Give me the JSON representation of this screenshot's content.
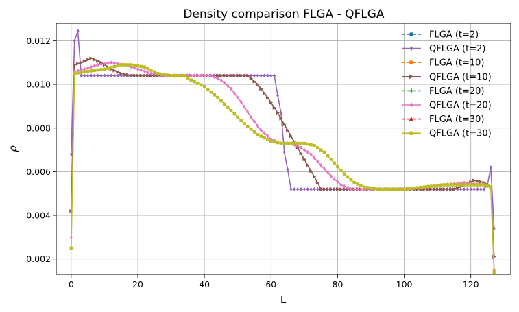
{
  "chart_data": {
    "type": "line",
    "title": "Density comparison FLGA - QFLGA",
    "xlabel": "L",
    "ylabel": "ρ",
    "xlim": [
      -4.5,
      132
    ],
    "ylim": [
      0.0013,
      0.0128
    ],
    "xticks": [
      0,
      20,
      40,
      60,
      80,
      100,
      120
    ],
    "yticks": [
      0.002,
      0.004,
      0.006,
      0.008,
      0.01,
      0.012
    ],
    "ytick_labels": [
      "0.002",
      "0.004",
      "0.006",
      "0.008",
      "0.010",
      "0.012"
    ],
    "grid": true,
    "legend_position": "top-right",
    "n_points": 128,
    "series": [
      {
        "name": "FLGA (t=2)",
        "color": "#1f77b4",
        "marker": "circle",
        "dashed": true,
        "visible": false,
        "points": [
          [
            0,
            0.0068
          ],
          [
            1,
            0.012
          ],
          [
            2,
            0.01245
          ],
          [
            3,
            0.0104
          ],
          [
            61,
            0.0104
          ],
          [
            62,
            0.0095
          ],
          [
            63,
            0.0087
          ],
          [
            64,
            0.0069
          ],
          [
            65,
            0.0061
          ],
          [
            66,
            0.0052
          ],
          [
            124,
            0.0052
          ],
          [
            125,
            0.0054
          ],
          [
            126,
            0.0062
          ],
          [
            127,
            0.0034
          ]
        ]
      },
      {
        "name": "QFLGA (t=2)",
        "color": "#9467bd",
        "marker": "diamond",
        "dashed": false,
        "visible": true,
        "points": [
          [
            0,
            0.0068
          ],
          [
            1,
            0.012
          ],
          [
            2,
            0.01245
          ],
          [
            3,
            0.0104
          ],
          [
            61,
            0.0104
          ],
          [
            62,
            0.0095
          ],
          [
            63,
            0.0087
          ],
          [
            64,
            0.0069
          ],
          [
            65,
            0.0061
          ],
          [
            66,
            0.0052
          ],
          [
            124,
            0.0052
          ],
          [
            125,
            0.0054
          ],
          [
            126,
            0.0062
          ],
          [
            127,
            0.0034
          ]
        ]
      },
      {
        "name": "FLGA (t=10)",
        "color": "#ff7f0e",
        "marker": "square",
        "dashed": true,
        "visible": false,
        "points": [
          [
            0,
            0.0042
          ],
          [
            1,
            0.0109
          ],
          [
            3,
            0.011
          ],
          [
            6,
            0.0112
          ],
          [
            9,
            0.011
          ],
          [
            12,
            0.0107
          ],
          [
            15,
            0.0105
          ],
          [
            18,
            0.0104
          ],
          [
            53,
            0.0104
          ],
          [
            56,
            0.01
          ],
          [
            59,
            0.0094
          ],
          [
            62,
            0.0087
          ],
          [
            65,
            0.0079
          ],
          [
            68,
            0.0071
          ],
          [
            71,
            0.0063
          ],
          [
            74,
            0.0055
          ],
          [
            75,
            0.0052
          ],
          [
            115,
            0.0052
          ],
          [
            118,
            0.0054
          ],
          [
            121,
            0.0056
          ],
          [
            124,
            0.0055
          ],
          [
            126,
            0.0053
          ],
          [
            127,
            0.0021
          ]
        ]
      },
      {
        "name": "QFLGA (t=10)",
        "color": "#8c564b",
        "marker": "triangle-right",
        "dashed": false,
        "visible": true,
        "points": [
          [
            0,
            0.0042
          ],
          [
            1,
            0.0109
          ],
          [
            3,
            0.011
          ],
          [
            6,
            0.0112
          ],
          [
            9,
            0.011
          ],
          [
            12,
            0.0107
          ],
          [
            15,
            0.0105
          ],
          [
            18,
            0.0104
          ],
          [
            53,
            0.0104
          ],
          [
            56,
            0.01
          ],
          [
            59,
            0.0094
          ],
          [
            62,
            0.0087
          ],
          [
            65,
            0.0079
          ],
          [
            68,
            0.0071
          ],
          [
            71,
            0.0063
          ],
          [
            74,
            0.0055
          ],
          [
            75,
            0.0052
          ],
          [
            115,
            0.0052
          ],
          [
            118,
            0.0054
          ],
          [
            121,
            0.0056
          ],
          [
            124,
            0.0055
          ],
          [
            126,
            0.0053
          ],
          [
            127,
            0.0021
          ]
        ]
      },
      {
        "name": "FLGA (t=20)",
        "color": "#2ca02c",
        "marker": "plus",
        "dashed": true,
        "visible": false,
        "points": [
          [
            0,
            0.003
          ],
          [
            1,
            0.0106
          ],
          [
            4,
            0.0107
          ],
          [
            8,
            0.0109
          ],
          [
            12,
            0.011
          ],
          [
            16,
            0.0109
          ],
          [
            20,
            0.0107
          ],
          [
            24,
            0.0105
          ],
          [
            28,
            0.0104
          ],
          [
            42,
            0.0104
          ],
          [
            45,
            0.0102
          ],
          [
            48,
            0.0098
          ],
          [
            51,
            0.0092
          ],
          [
            54,
            0.0085
          ],
          [
            57,
            0.0079
          ],
          [
            60,
            0.0075
          ],
          [
            63,
            0.0073
          ],
          [
            66,
            0.0073
          ],
          [
            69,
            0.0071
          ],
          [
            72,
            0.0068
          ],
          [
            75,
            0.0063
          ],
          [
            78,
            0.0058
          ],
          [
            81,
            0.0054
          ],
          [
            84,
            0.0052
          ],
          [
            100,
            0.0052
          ],
          [
            106,
            0.0053
          ],
          [
            112,
            0.0054
          ],
          [
            118,
            0.0055
          ],
          [
            124,
            0.0054
          ],
          [
            126,
            0.0053
          ],
          [
            127,
            0.0015
          ]
        ]
      },
      {
        "name": "QFLGA (t=20)",
        "color": "#e377c2",
        "marker": "diamond",
        "dashed": false,
        "visible": true,
        "points": [
          [
            0,
            0.003
          ],
          [
            1,
            0.0106
          ],
          [
            4,
            0.0107
          ],
          [
            8,
            0.0109
          ],
          [
            12,
            0.011
          ],
          [
            16,
            0.0109
          ],
          [
            20,
            0.0107
          ],
          [
            24,
            0.0105
          ],
          [
            28,
            0.0104
          ],
          [
            42,
            0.0104
          ],
          [
            45,
            0.0102
          ],
          [
            48,
            0.0098
          ],
          [
            51,
            0.0092
          ],
          [
            54,
            0.0085
          ],
          [
            57,
            0.0079
          ],
          [
            60,
            0.0075
          ],
          [
            63,
            0.0073
          ],
          [
            66,
            0.0073
          ],
          [
            69,
            0.0071
          ],
          [
            72,
            0.0068
          ],
          [
            75,
            0.0063
          ],
          [
            78,
            0.0058
          ],
          [
            81,
            0.0054
          ],
          [
            84,
            0.0052
          ],
          [
            100,
            0.0052
          ],
          [
            106,
            0.0053
          ],
          [
            112,
            0.0054
          ],
          [
            118,
            0.0055
          ],
          [
            124,
            0.0054
          ],
          [
            126,
            0.0053
          ],
          [
            127,
            0.0015
          ]
        ]
      },
      {
        "name": "FLGA (t=30)",
        "color": "#d62728",
        "marker": "triangle-up",
        "dashed": true,
        "visible": false,
        "points": [
          [
            0,
            0.0025
          ],
          [
            1,
            0.0105
          ],
          [
            5,
            0.0106
          ],
          [
            10,
            0.0107
          ],
          [
            15,
            0.0109
          ],
          [
            18,
            0.0109
          ],
          [
            22,
            0.0108
          ],
          [
            26,
            0.0105
          ],
          [
            30,
            0.0104
          ],
          [
            34,
            0.0104
          ],
          [
            36,
            0.0102
          ],
          [
            40,
            0.0099
          ],
          [
            44,
            0.0094
          ],
          [
            48,
            0.0088
          ],
          [
            52,
            0.0082
          ],
          [
            56,
            0.0077
          ],
          [
            60,
            0.0074
          ],
          [
            63,
            0.0073
          ],
          [
            67,
            0.0073
          ],
          [
            70,
            0.0073
          ],
          [
            73,
            0.0072
          ],
          [
            76,
            0.0069
          ],
          [
            79,
            0.0064
          ],
          [
            82,
            0.0059
          ],
          [
            85,
            0.0055
          ],
          [
            88,
            0.0053
          ],
          [
            92,
            0.0052
          ],
          [
            100,
            0.0052
          ],
          [
            106,
            0.0053
          ],
          [
            112,
            0.0054
          ],
          [
            118,
            0.0054
          ],
          [
            124,
            0.0054
          ],
          [
            126,
            0.0053
          ],
          [
            127,
            0.0014
          ]
        ]
      },
      {
        "name": "QFLGA (t=30)",
        "color": "#bcbd22",
        "marker": "square",
        "dashed": false,
        "visible": true,
        "points": [
          [
            0,
            0.0025
          ],
          [
            1,
            0.0105
          ],
          [
            5,
            0.0106
          ],
          [
            10,
            0.0107
          ],
          [
            15,
            0.0109
          ],
          [
            18,
            0.0109
          ],
          [
            22,
            0.0108
          ],
          [
            26,
            0.0105
          ],
          [
            30,
            0.0104
          ],
          [
            34,
            0.0104
          ],
          [
            36,
            0.0102
          ],
          [
            40,
            0.0099
          ],
          [
            44,
            0.0094
          ],
          [
            48,
            0.0088
          ],
          [
            52,
            0.0082
          ],
          [
            56,
            0.0077
          ],
          [
            60,
            0.0074
          ],
          [
            63,
            0.0073
          ],
          [
            67,
            0.0073
          ],
          [
            70,
            0.0073
          ],
          [
            73,
            0.0072
          ],
          [
            76,
            0.0069
          ],
          [
            79,
            0.0064
          ],
          [
            82,
            0.0059
          ],
          [
            85,
            0.0055
          ],
          [
            88,
            0.0053
          ],
          [
            92,
            0.0052
          ],
          [
            100,
            0.0052
          ],
          [
            106,
            0.0053
          ],
          [
            112,
            0.0054
          ],
          [
            118,
            0.0054
          ],
          [
            124,
            0.0054
          ],
          [
            126,
            0.0053
          ],
          [
            127,
            0.0014
          ]
        ]
      }
    ]
  }
}
